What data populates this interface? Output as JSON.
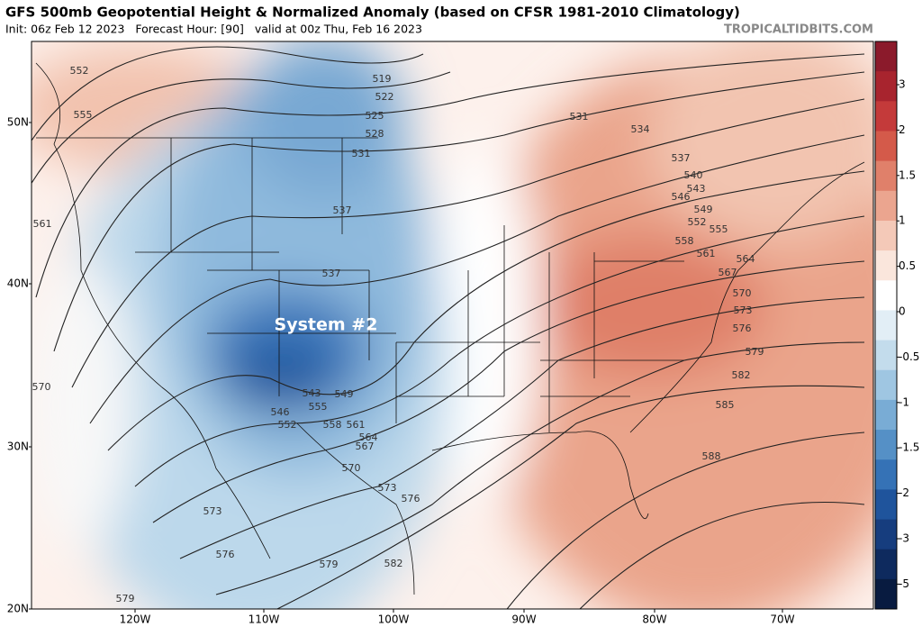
{
  "header": {
    "title": "GFS 500mb Geopotential Height & Normalized Anomaly (based on CFSR 1981-2010 Climatology)",
    "subtitle": "Init: 06z Feb 12 2023   Forecast Hour: [90]   valid at 00z Thu, Feb 16 2023",
    "watermark": "TROPICALTIDBITS.COM"
  },
  "map": {
    "annotation": "System #2",
    "lat_labels": [
      "50N",
      "40N",
      "30N",
      "20N"
    ],
    "lon_labels": [
      "120W",
      "110W",
      "100W",
      "90W",
      "80W",
      "70W"
    ],
    "contour_labels": [
      552,
      555,
      519,
      522,
      525,
      528,
      531,
      537,
      531,
      534,
      537,
      540,
      543,
      546,
      549,
      552,
      555,
      558,
      561,
      564,
      567,
      570,
      573,
      576,
      579,
      582,
      585,
      588,
      561,
      570,
      537,
      543,
      549,
      546,
      552,
      555,
      558,
      561,
      564,
      567,
      570,
      573,
      576,
      573,
      576,
      579,
      582,
      579
    ]
  },
  "colorbar": {
    "ticks": [
      3,
      2,
      1.5,
      1,
      0.5,
      0,
      -0.5,
      -1,
      -1.5,
      -2,
      -3,
      -5
    ],
    "colors": [
      "#8b1a2b",
      "#a8242e",
      "#c43a3a",
      "#d45a4a",
      "#e0806a",
      "#eba58f",
      "#f4c9b8",
      "#fae6dc",
      "#ffffff",
      "#e2eef6",
      "#c3dcec",
      "#9fc6e2",
      "#79acd5",
      "#5590c6",
      "#3572b6",
      "#1f549c",
      "#163d7e",
      "#0e2a5e",
      "#081b40"
    ]
  }
}
